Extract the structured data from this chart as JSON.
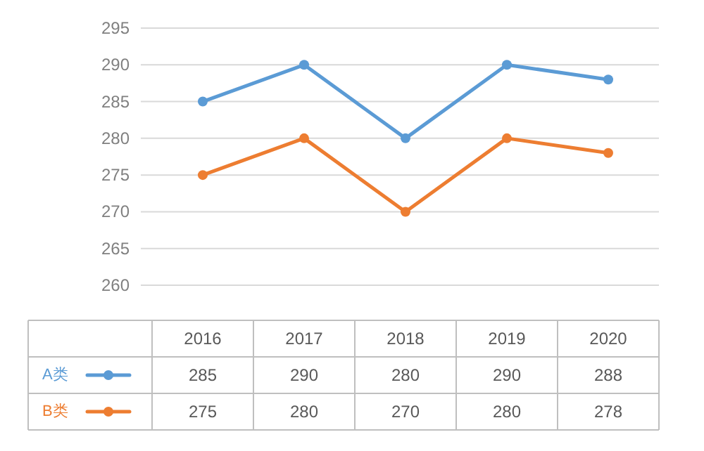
{
  "chart_data": {
    "type": "line",
    "categories": [
      "2016",
      "2017",
      "2018",
      "2019",
      "2020"
    ],
    "series": [
      {
        "name": "A类",
        "color": "#5b9bd5",
        "values": [
          285,
          290,
          280,
          290,
          288
        ]
      },
      {
        "name": "B类",
        "color": "#ed7d31",
        "values": [
          275,
          280,
          270,
          280,
          278
        ]
      }
    ],
    "ylim": [
      260,
      295
    ],
    "yticks": [
      260,
      265,
      270,
      275,
      280,
      285,
      290,
      295
    ],
    "grid": "y",
    "marker": "circle",
    "line_style": "solid",
    "data_labels": true,
    "legend": "bottom"
  }
}
